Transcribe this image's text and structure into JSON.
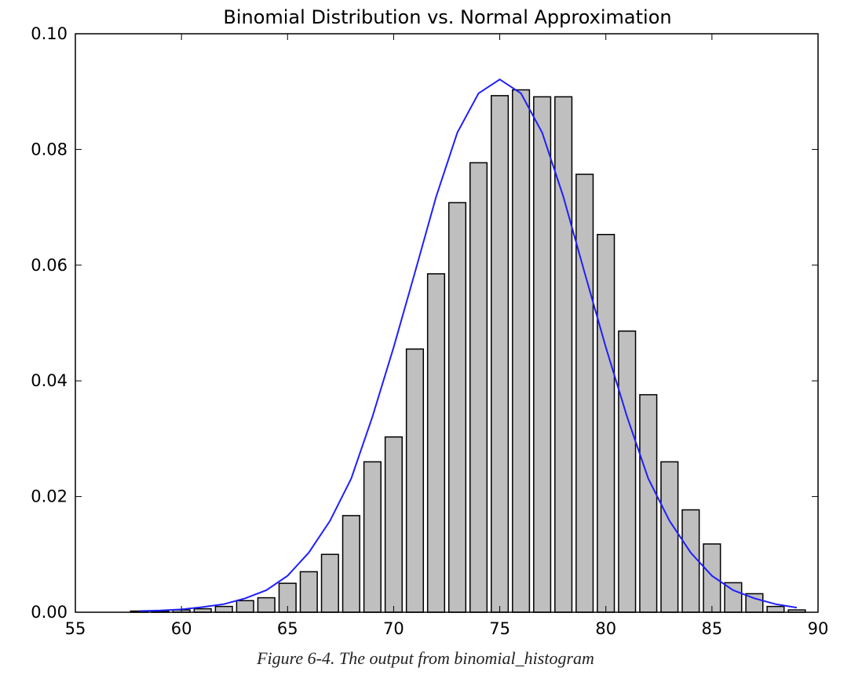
{
  "chart_data": {
    "type": "bar",
    "title": "Binomial Distribution vs. Normal Approximation",
    "xlabel": "",
    "ylabel": "",
    "xlim": [
      55,
      90
    ],
    "ylim": [
      0.0,
      0.1
    ],
    "x_ticks": [
      55,
      60,
      65,
      70,
      75,
      80,
      85,
      90
    ],
    "x_tick_labels": [
      "55",
      "60",
      "65",
      "70",
      "75",
      "80",
      "85",
      "90"
    ],
    "y_ticks": [
      0.0,
      0.02,
      0.04,
      0.06,
      0.08,
      0.1
    ],
    "y_tick_labels": [
      "0.00",
      "0.02",
      "0.04",
      "0.06",
      "0.08",
      "0.10"
    ],
    "grid": false,
    "bar_width": 0.8,
    "bar_color": "#bfbfbf",
    "bar_edge_color": "#000000",
    "line_color": "#1f1fff",
    "bars": {
      "x": [
        57.6,
        58.6,
        59.6,
        60.6,
        61.6,
        62.6,
        63.6,
        64.6,
        65.6,
        66.6,
        67.6,
        68.6,
        69.6,
        70.6,
        71.6,
        72.6,
        73.6,
        74.6,
        75.6,
        76.6,
        77.6,
        78.6,
        79.6,
        80.6,
        81.6,
        82.6,
        83.6,
        84.6,
        85.6,
        86.6,
        87.6,
        88.6
      ],
      "y": [
        0.0002,
        0.0002,
        0.0004,
        0.0006,
        0.001,
        0.002,
        0.0025,
        0.005,
        0.007,
        0.01,
        0.0167,
        0.026,
        0.0303,
        0.0455,
        0.0585,
        0.0708,
        0.0777,
        0.0893,
        0.0903,
        0.0891,
        0.0891,
        0.0757,
        0.0653,
        0.0486,
        0.0376,
        0.026,
        0.0177,
        0.0118,
        0.0051,
        0.0032,
        0.001,
        0.0004
      ]
    },
    "series": [
      {
        "type": "line",
        "x": [
          58,
          59,
          60,
          61,
          62,
          63,
          64,
          65,
          66,
          67,
          68,
          69,
          70,
          71,
          72,
          73,
          74,
          75,
          76,
          77,
          78,
          79,
          80,
          81,
          82,
          83,
          84,
          85,
          86,
          87,
          88,
          89
        ],
        "y": [
          0.0002,
          0.0003,
          0.0005,
          0.0009,
          0.0014,
          0.0024,
          0.0038,
          0.0063,
          0.0103,
          0.0158,
          0.0231,
          0.0338,
          0.0458,
          0.0587,
          0.0718,
          0.0829,
          0.0897,
          0.0921,
          0.0897,
          0.0829,
          0.0718,
          0.0587,
          0.0458,
          0.0338,
          0.0231,
          0.0158,
          0.0103,
          0.0063,
          0.0038,
          0.0024,
          0.0014,
          0.0008
        ]
      }
    ]
  },
  "caption": "Figure 6-4. The output from binomial_histogram"
}
